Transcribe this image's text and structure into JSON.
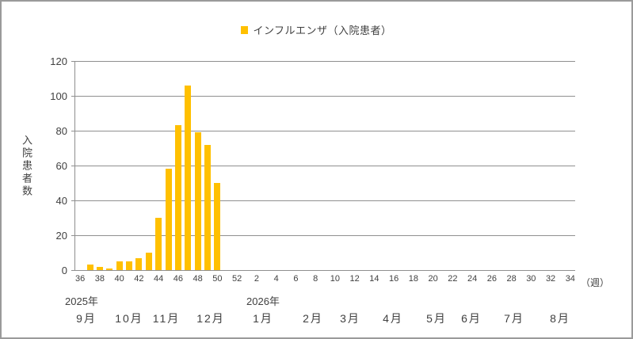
{
  "chart_data": {
    "type": "bar",
    "legend": [
      {
        "label": "インフルエンザ（入院患者）",
        "color": "#FFC000"
      }
    ],
    "legend_position": "top",
    "ylabel": "入院患者数",
    "x_unit_label": "（週）",
    "ylim": [
      0,
      120
    ],
    "yticks": [
      0,
      20,
      40,
      60,
      80,
      100,
      120
    ],
    "grid": true,
    "x_tick_labels": [
      "36",
      "38",
      "40",
      "42",
      "44",
      "46",
      "48",
      "50",
      "52",
      "2",
      "4",
      "6",
      "8",
      "10",
      "12",
      "14",
      "16",
      "18",
      "20",
      "22",
      "24",
      "26",
      "28",
      "30",
      "32",
      "34"
    ],
    "years": [
      {
        "label": "2025年"
      },
      {
        "label": "2026年"
      }
    ],
    "months": [
      "9月",
      "10月",
      "11月",
      "12月",
      "1月",
      "2月",
      "3月",
      "4月",
      "5月",
      "6月",
      "7月",
      "8月"
    ],
    "series": [
      {
        "name": "インフルエンザ（入院患者）",
        "color": "#FFC000",
        "points": [
          {
            "year": 2025,
            "week": 36,
            "value": 0
          },
          {
            "year": 2025,
            "week": 37,
            "value": 3
          },
          {
            "year": 2025,
            "week": 38,
            "value": 2
          },
          {
            "year": 2025,
            "week": 39,
            "value": 1
          },
          {
            "year": 2025,
            "week": 40,
            "value": 5
          },
          {
            "year": 2025,
            "week": 41,
            "value": 5
          },
          {
            "year": 2025,
            "week": 42,
            "value": 7
          },
          {
            "year": 2025,
            "week": 43,
            "value": 10
          },
          {
            "year": 2025,
            "week": 44,
            "value": 30
          },
          {
            "year": 2025,
            "week": 45,
            "value": 58
          },
          {
            "year": 2025,
            "week": 46,
            "value": 83
          },
          {
            "year": 2025,
            "week": 47,
            "value": 106
          },
          {
            "year": 2025,
            "week": 48,
            "value": 79
          },
          {
            "year": 2025,
            "week": 49,
            "value": 72
          },
          {
            "year": 2025,
            "week": 50,
            "value": 50
          }
        ]
      }
    ]
  },
  "colors": {
    "bar": "#FFC000",
    "grid": "#8f8f8f",
    "text": "#404040",
    "frame_border": "#9a9a9a"
  }
}
